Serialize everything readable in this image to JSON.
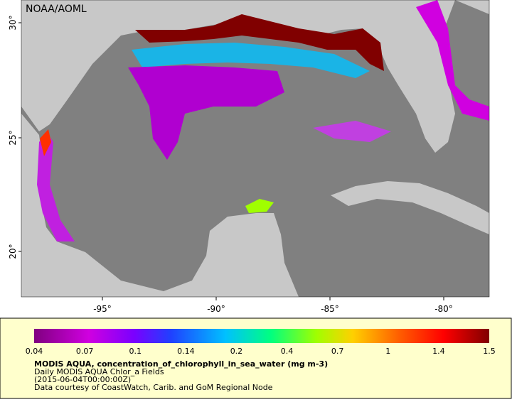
{
  "header": {
    "credit": "NOAA/AOML"
  },
  "map": {
    "lat_labels": [
      "30°",
      "25°",
      "20°"
    ],
    "lon_labels": [
      "-95°",
      "-90°",
      "-85°",
      "-80°"
    ]
  },
  "legend": {
    "ticks": [
      "0.04",
      "0.07",
      "0.1",
      "0.14",
      "0.2",
      "0.4",
      "0.7",
      "1",
      "1.4",
      "1.5"
    ],
    "title": "MODIS AQUA, concentration_of_chlorophyll_in_sea_water (mg m-3)",
    "subtitle": "Daily MODIS AQUA Chlor_a Fields",
    "time": "(2015-06-04T00:00:00Z)",
    "credit": "Data courtesy of CoastWatch, Carib. and GoM Regional Node"
  }
}
